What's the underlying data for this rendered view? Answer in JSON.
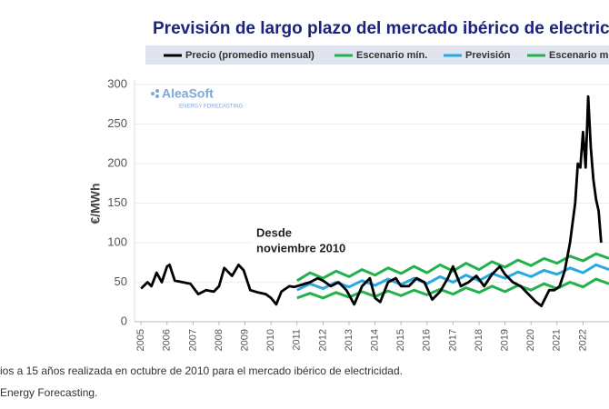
{
  "chart_data": {
    "type": "line",
    "title": "Previsión de largo plazo del mercado ibérico de electricid",
    "y_label": "€/MWh",
    "logo": {
      "name": "AleaSoft",
      "tagline": "ENERGY FORECASTING"
    },
    "annotation": [
      "Desde",
      "noviembre 2010"
    ],
    "xlim": [
      2004.75,
      2023.0
    ],
    "ylim": [
      0,
      300
    ],
    "xticks": [
      2005,
      2006,
      2007,
      2008,
      2009,
      2010,
      2011,
      2012,
      2013,
      2014,
      2015,
      2016,
      2017,
      2018,
      2019,
      2020,
      2021,
      2022
    ],
    "yticks": [
      0,
      50,
      100,
      150,
      200,
      250,
      300
    ],
    "grid": true,
    "series": [
      {
        "name": "Precio (promedio mensual)",
        "color": "#000000",
        "x": [
          2005.0,
          2005.25,
          2005.4,
          2005.6,
          2005.8,
          2006.0,
          2006.1,
          2006.3,
          2006.6,
          2006.9,
          2007.2,
          2007.5,
          2007.8,
          2008.0,
          2008.2,
          2008.5,
          2008.75,
          2008.95,
          2009.2,
          2009.5,
          2009.8,
          2010.0,
          2010.2,
          2010.4,
          2010.7,
          2010.9,
          2011.2,
          2011.5,
          2011.8,
          2012.0,
          2012.3,
          2012.6,
          2012.9,
          2013.2,
          2013.5,
          2013.8,
          2014.0,
          2014.2,
          2014.5,
          2014.8,
          2015.0,
          2015.3,
          2015.6,
          2015.9,
          2016.2,
          2016.5,
          2016.8,
          2017.0,
          2017.3,
          2017.6,
          2017.9,
          2018.2,
          2018.5,
          2018.8,
          2019.0,
          2019.3,
          2019.6,
          2019.9,
          2020.2,
          2020.4,
          2020.7,
          2020.9,
          2021.1,
          2021.3,
          2021.5,
          2021.7,
          2021.8,
          2021.9,
          2022.0,
          2022.1,
          2022.2,
          2022.3,
          2022.4,
          2022.5,
          2022.6,
          2022.7
        ],
        "values": [
          42,
          50,
          45,
          62,
          50,
          70,
          72,
          52,
          50,
          48,
          35,
          40,
          38,
          45,
          68,
          58,
          72,
          65,
          40,
          37,
          35,
          30,
          22,
          38,
          45,
          44,
          47,
          50,
          55,
          52,
          45,
          50,
          40,
          22,
          45,
          55,
          30,
          25,
          50,
          55,
          45,
          45,
          55,
          50,
          28,
          38,
          55,
          70,
          45,
          50,
          58,
          45,
          60,
          70,
          60,
          50,
          45,
          35,
          25,
          20,
          40,
          40,
          45,
          65,
          100,
          150,
          200,
          195,
          240,
          195,
          285,
          220,
          180,
          155,
          140,
          100
        ]
      },
      {
        "name": "Escenario mín.",
        "color": "#22b14c",
        "x": [
          2011.0,
          2011.5,
          2012.0,
          2012.5,
          2013.0,
          2013.5,
          2014.0,
          2014.5,
          2015.0,
          2015.5,
          2016.0,
          2016.5,
          2017.0,
          2017.5,
          2018.0,
          2018.5,
          2019.0,
          2019.5,
          2020.0,
          2020.5,
          2021.0,
          2021.5,
          2022.0,
          2022.5,
          2023.0
        ],
        "values": [
          30,
          36,
          30,
          37,
          31,
          38,
          32,
          39,
          33,
          40,
          34,
          41,
          35,
          43,
          37,
          45,
          38,
          46,
          40,
          48,
          42,
          50,
          44,
          54,
          48
        ]
      },
      {
        "name": "Previsión",
        "color": "#2aa8e0",
        "x": [
          2011.0,
          2011.5,
          2012.0,
          2012.5,
          2013.0,
          2013.5,
          2014.0,
          2014.5,
          2015.0,
          2015.5,
          2016.0,
          2016.5,
          2017.0,
          2017.5,
          2018.0,
          2018.5,
          2019.0,
          2019.5,
          2020.0,
          2020.5,
          2021.0,
          2021.5,
          2022.0,
          2022.5,
          2023.0
        ],
        "values": [
          40,
          48,
          42,
          50,
          44,
          52,
          46,
          54,
          47,
          55,
          48,
          57,
          50,
          59,
          52,
          61,
          55,
          63,
          57,
          65,
          60,
          68,
          62,
          72,
          66
        ]
      },
      {
        "name": "Escenario m",
        "color": "#22b14c",
        "x": [
          2011.0,
          2011.5,
          2012.0,
          2012.5,
          2013.0,
          2013.5,
          2014.0,
          2014.5,
          2015.0,
          2015.5,
          2016.0,
          2016.5,
          2017.0,
          2017.5,
          2018.0,
          2018.5,
          2019.0,
          2019.5,
          2020.0,
          2020.5,
          2021.0,
          2021.5,
          2022.0,
          2022.5,
          2023.0
        ],
        "values": [
          52,
          62,
          55,
          64,
          57,
          66,
          59,
          68,
          61,
          70,
          62,
          72,
          64,
          74,
          66,
          76,
          69,
          78,
          71,
          80,
          74,
          83,
          77,
          86,
          80
        ]
      }
    ]
  },
  "caption": [
    "ios a 15 años realizada en octubre de 2010 para el mercado ibérico de electricidad.",
    "Energy Forecasting."
  ]
}
